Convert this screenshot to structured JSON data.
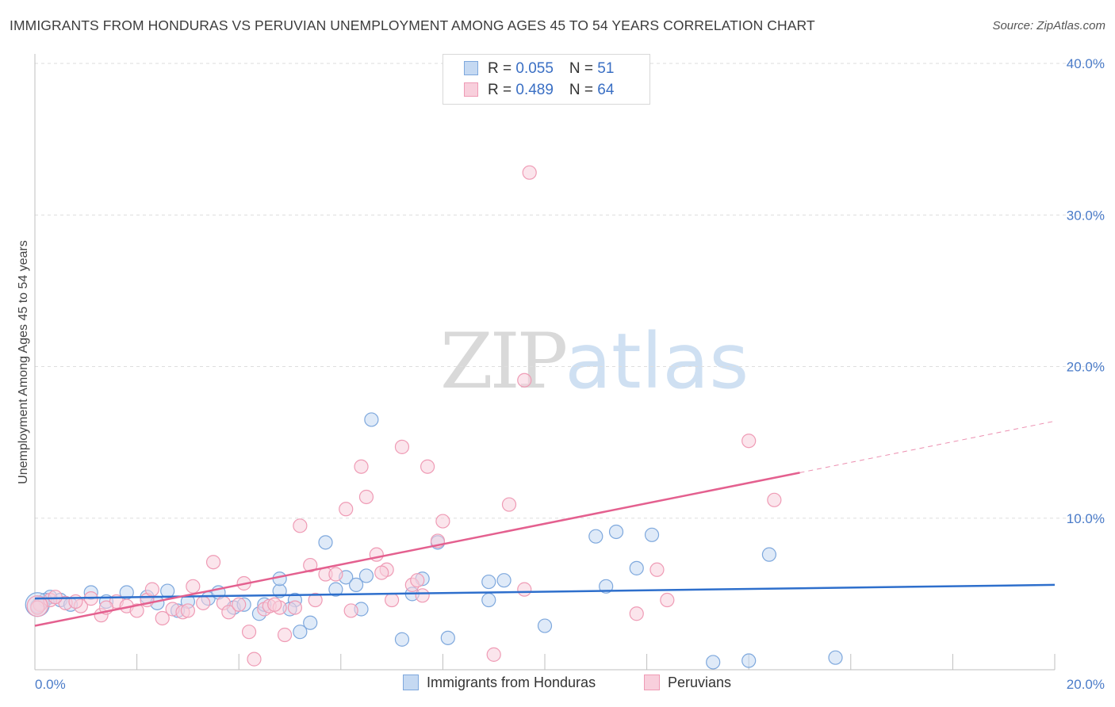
{
  "title": "IMMIGRANTS FROM HONDURAS VS PERUVIAN UNEMPLOYMENT AMONG AGES 45 TO 54 YEARS CORRELATION CHART",
  "source": "Source: ZipAtlas.com",
  "watermark": {
    "zip": "ZIP",
    "atlas": "atlas"
  },
  "legend": {
    "series1": {
      "r_label": "R = ",
      "r_value": "0.055",
      "n_label": "N = ",
      "n_value": "51"
    },
    "series2": {
      "r_label": "R = ",
      "r_value": "0.489",
      "n_label": "N = ",
      "n_value": "64"
    }
  },
  "chart_data": {
    "type": "scatter",
    "title": "IMMIGRANTS FROM HONDURAS VS PERUVIAN UNEMPLOYMENT AMONG AGES 45 TO 54 YEARS CORRELATION CHART",
    "xlabel": "",
    "ylabel": "Unemployment Among Ages 45 to 54 years",
    "xlim": [
      0,
      20
    ],
    "ylim": [
      0,
      40
    ],
    "x_tick_labels": [
      "0.0%",
      "20.0%"
    ],
    "y_ticks": [
      10,
      20,
      30,
      40
    ],
    "y_tick_labels": [
      "10.0%",
      "20.0%",
      "30.0%",
      "40.0%"
    ],
    "grid": true,
    "legend_position": "top-center",
    "series": [
      {
        "name": "Immigrants from Honduras",
        "color": "#7ea8dd",
        "fill": "#c5d9f2",
        "trend_color": "#2e6fcc",
        "R": 0.055,
        "N": 51,
        "trend": {
          "x": [
            0,
            20
          ],
          "y": [
            4.7,
            5.6
          ]
        },
        "points": [
          [
            0.1,
            4.4
          ],
          [
            0.3,
            4.8
          ],
          [
            0.5,
            4.6
          ],
          [
            0.7,
            4.3
          ],
          [
            1.1,
            5.1
          ],
          [
            1.4,
            4.5
          ],
          [
            1.8,
            5.1
          ],
          [
            2.2,
            4.8
          ],
          [
            2.6,
            5.2
          ],
          [
            2.8,
            3.9
          ],
          [
            3.0,
            4.5
          ],
          [
            3.4,
            4.7
          ],
          [
            3.6,
            5.1
          ],
          [
            3.9,
            4.1
          ],
          [
            4.1,
            4.3
          ],
          [
            4.4,
            3.7
          ],
          [
            4.5,
            4.3
          ],
          [
            4.8,
            5.2
          ],
          [
            4.8,
            6.0
          ],
          [
            5.1,
            4.6
          ],
          [
            5.0,
            4.0
          ],
          [
            5.2,
            2.5
          ],
          [
            5.4,
            3.1
          ],
          [
            5.7,
            8.4
          ],
          [
            5.9,
            5.3
          ],
          [
            6.1,
            6.1
          ],
          [
            6.3,
            5.6
          ],
          [
            6.5,
            6.2
          ],
          [
            6.6,
            16.5
          ],
          [
            7.2,
            2.0
          ],
          [
            7.4,
            5.0
          ],
          [
            7.6,
            6.0
          ],
          [
            7.9,
            8.4
          ],
          [
            8.1,
            2.1
          ],
          [
            8.9,
            5.8
          ],
          [
            8.9,
            4.6
          ],
          [
            9.2,
            5.9
          ],
          [
            10.0,
            2.9
          ],
          [
            11.0,
            8.8
          ],
          [
            11.2,
            5.5
          ],
          [
            11.4,
            9.1
          ],
          [
            11.8,
            6.7
          ],
          [
            12.1,
            8.9
          ],
          [
            13.3,
            0.5
          ],
          [
            14.0,
            0.6
          ],
          [
            14.4,
            7.6
          ],
          [
            15.7,
            0.8
          ],
          [
            0.05,
            4.2
          ],
          [
            0.2,
            4.6
          ],
          [
            2.4,
            4.4
          ],
          [
            6.4,
            4.0
          ]
        ]
      },
      {
        "name": "Peruvians",
        "color": "#ef9bb5",
        "fill": "#f8cfdc",
        "trend_color": "#e4608f",
        "R": 0.489,
        "N": 64,
        "trend": {
          "x": [
            0,
            15.0
          ],
          "y": [
            2.9,
            13.0
          ]
        },
        "trend_dashed": {
          "x": [
            15.0,
            20
          ],
          "y": [
            13.0,
            16.4
          ]
        },
        "points": [
          [
            0.1,
            4.3
          ],
          [
            0.3,
            4.6
          ],
          [
            0.6,
            4.4
          ],
          [
            0.9,
            4.2
          ],
          [
            1.1,
            4.7
          ],
          [
            1.3,
            3.6
          ],
          [
            1.6,
            4.5
          ],
          [
            1.8,
            4.2
          ],
          [
            2.0,
            3.9
          ],
          [
            2.2,
            4.6
          ],
          [
            2.5,
            3.4
          ],
          [
            2.7,
            4.0
          ],
          [
            2.9,
            3.8
          ],
          [
            3.1,
            5.5
          ],
          [
            3.3,
            4.4
          ],
          [
            3.5,
            7.1
          ],
          [
            3.7,
            4.4
          ],
          [
            3.8,
            3.8
          ],
          [
            4.0,
            4.3
          ],
          [
            4.1,
            5.7
          ],
          [
            4.2,
            2.5
          ],
          [
            4.3,
            0.7
          ],
          [
            4.5,
            4.0
          ],
          [
            4.6,
            4.2
          ],
          [
            4.8,
            4.1
          ],
          [
            4.9,
            2.3
          ],
          [
            5.1,
            4.1
          ],
          [
            5.2,
            9.5
          ],
          [
            5.4,
            6.9
          ],
          [
            5.5,
            4.6
          ],
          [
            5.7,
            6.3
          ],
          [
            5.9,
            6.3
          ],
          [
            6.1,
            10.6
          ],
          [
            6.2,
            3.9
          ],
          [
            6.4,
            13.4
          ],
          [
            6.5,
            11.4
          ],
          [
            6.7,
            7.6
          ],
          [
            6.9,
            6.6
          ],
          [
            7.0,
            4.6
          ],
          [
            7.2,
            14.7
          ],
          [
            7.4,
            5.6
          ],
          [
            7.6,
            4.9
          ],
          [
            7.7,
            13.4
          ],
          [
            7.9,
            8.5
          ],
          [
            8.0,
            9.8
          ],
          [
            9.0,
            1.0
          ],
          [
            9.3,
            10.9
          ],
          [
            9.6,
            5.3
          ],
          [
            9.7,
            32.8
          ],
          [
            9.6,
            19.1
          ],
          [
            11.8,
            3.7
          ],
          [
            12.2,
            6.6
          ],
          [
            12.4,
            4.6
          ],
          [
            14.0,
            15.1
          ],
          [
            14.5,
            11.2
          ],
          [
            0.05,
            4.1
          ],
          [
            0.4,
            4.8
          ],
          [
            0.8,
            4.5
          ],
          [
            1.4,
            4.1
          ],
          [
            2.3,
            5.3
          ],
          [
            3.0,
            3.9
          ],
          [
            4.7,
            4.3
          ],
          [
            6.8,
            6.4
          ],
          [
            7.5,
            5.9
          ]
        ]
      }
    ],
    "legend_entries": [
      "Immigrants from Honduras",
      "Peruvians"
    ]
  }
}
